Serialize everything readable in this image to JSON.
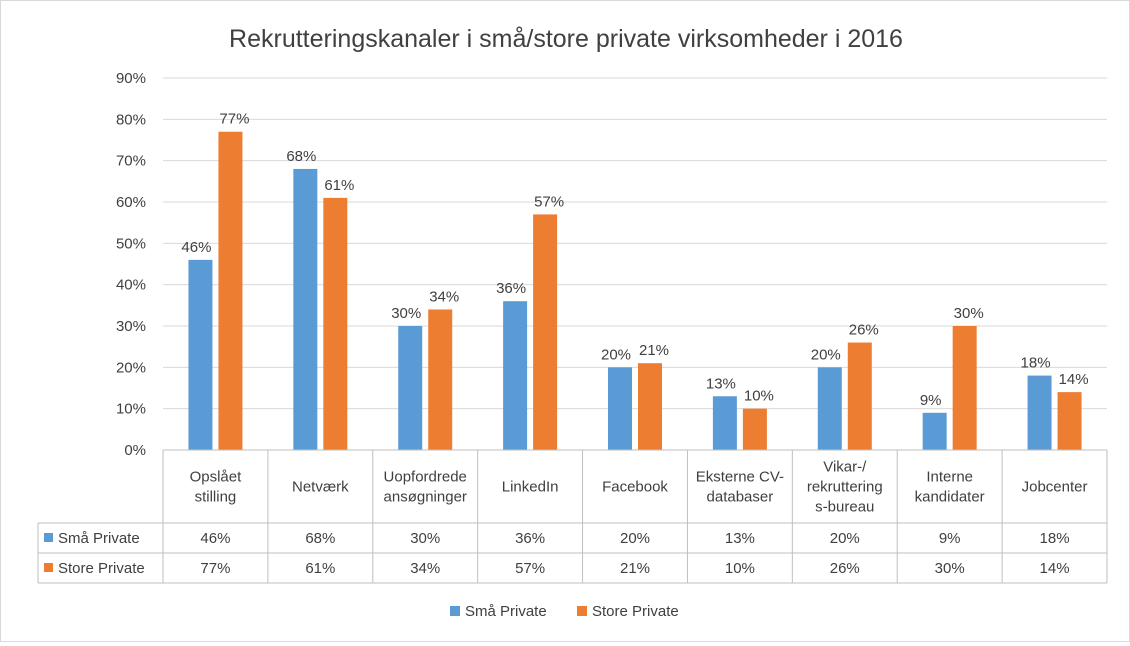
{
  "chart_data": {
    "type": "bar",
    "title": "Rekrutteringskanaler i små/store private virksomheder i 2016",
    "categories": [
      [
        "Opslået",
        "stilling"
      ],
      [
        "Netværk"
      ],
      [
        "Uopfordrede",
        "ansøgninger"
      ],
      [
        "LinkedIn"
      ],
      [
        "Facebook"
      ],
      [
        "Eksterne CV-",
        "databaser"
      ],
      [
        "Vikar-/",
        "rekruttering",
        "s-bureau"
      ],
      [
        "Interne",
        "kandidater"
      ],
      [
        "Jobcenter"
      ]
    ],
    "series": [
      {
        "name": "Små Private",
        "color": "#5b9bd5",
        "values": [
          46,
          68,
          30,
          36,
          20,
          13,
          20,
          9,
          18
        ],
        "labels": [
          "46%",
          "68%",
          "30%",
          "36%",
          "20%",
          "13%",
          "20%",
          "9%",
          "18%"
        ]
      },
      {
        "name": "Store Private",
        "color": "#ed7d31",
        "values": [
          77,
          61,
          34,
          57,
          21,
          10,
          26,
          30,
          14
        ],
        "labels": [
          "77%",
          "61%",
          "34%",
          "57%",
          "21%",
          "10%",
          "26%",
          "30%",
          "14%"
        ]
      }
    ],
    "y_ticks": [
      "0%",
      "10%",
      "20%",
      "30%",
      "40%",
      "50%",
      "60%",
      "70%",
      "80%",
      "90%"
    ],
    "ylim": [
      0,
      90
    ],
    "grid": true,
    "data_table": true,
    "legend_position": "bottom"
  }
}
